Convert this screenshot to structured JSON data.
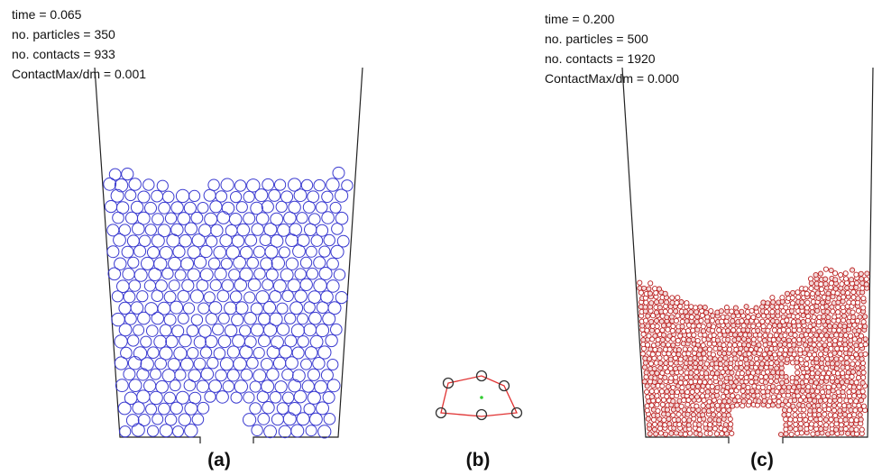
{
  "panels": [
    {
      "info": [
        "time = 0.065",
        "no. particles =  350",
        "no. contacts =  933",
        "ContactMax/dm = 0.001"
      ],
      "caption": "(a)"
    },
    {
      "caption": "(b)"
    },
    {
      "info": [
        "time = 0.200",
        "no. particles =  500",
        "no. contacts =  1920",
        "ContactMax/dm = 0.000"
      ],
      "caption": "(c)"
    }
  ]
}
